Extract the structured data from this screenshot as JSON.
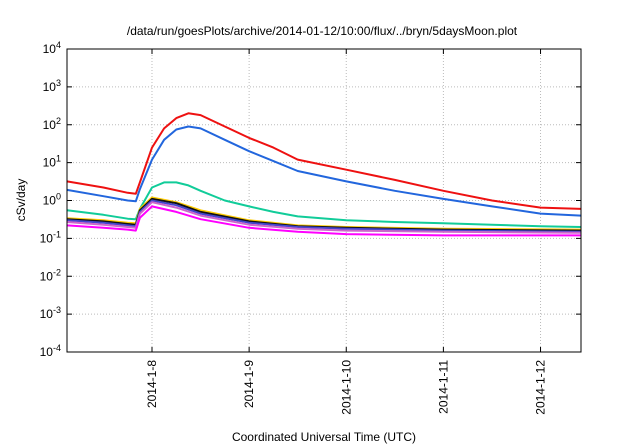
{
  "chart_data": {
    "type": "line",
    "title": "/data/run/goesPlots/archive/2014-01-12/10:00/flux/../bryn/5daysMoon.plot",
    "xlabel": "Coordinated Universal Time (UTC)",
    "ylabel": "cSv/day",
    "yscale": "log",
    "ylim": [
      0.0001,
      10000
    ],
    "yticks": [
      {
        "value": 0.0001,
        "base": "10",
        "exp": "-4"
      },
      {
        "value": 0.001,
        "base": "10",
        "exp": "-3"
      },
      {
        "value": 0.01,
        "base": "10",
        "exp": "-2"
      },
      {
        "value": 0.1,
        "base": "10",
        "exp": "-1"
      },
      {
        "value": 1,
        "base": "10",
        "exp": "0"
      },
      {
        "value": 10,
        "base": "10",
        "exp": "1"
      },
      {
        "value": 100,
        "base": "10",
        "exp": "2"
      },
      {
        "value": 1000,
        "base": "10",
        "exp": "3"
      },
      {
        "value": 10000,
        "base": "10",
        "exp": "4"
      }
    ],
    "xlim": [
      "2014-01-07T03:00",
      "2014-01-12T10:00"
    ],
    "xticks": [
      {
        "value": "2014-01-08T00:00",
        "label": "2014-1-8"
      },
      {
        "value": "2014-01-09T00:00",
        "label": "2014-1-9"
      },
      {
        "value": "2014-01-10T00:00",
        "label": "2014-1-10"
      },
      {
        "value": "2014-01-11T00:00",
        "label": "2014-1-11"
      },
      {
        "value": "2014-01-12T00:00",
        "label": "2014-1-12"
      }
    ],
    "grid": true,
    "series": [
      {
        "color": "#ee1111",
        "x": [
          "2014-01-07T03:00",
          "2014-01-07T12:00",
          "2014-01-07T18:00",
          "2014-01-07T20:00",
          "2014-01-07T21:00",
          "2014-01-08T00:00",
          "2014-01-08T03:00",
          "2014-01-08T06:00",
          "2014-01-08T09:00",
          "2014-01-08T12:00",
          "2014-01-08T18:00",
          "2014-01-09T00:00",
          "2014-01-09T06:00",
          "2014-01-09T12:00",
          "2014-01-10T00:00",
          "2014-01-10T12:00",
          "2014-01-11T00:00",
          "2014-01-11T12:00",
          "2014-01-12T00:00",
          "2014-01-12T10:00"
        ],
        "values": [
          3.2,
          2.2,
          1.6,
          1.5,
          3,
          25,
          80,
          150,
          200,
          180,
          90,
          45,
          25,
          12,
          6.5,
          3.5,
          1.8,
          1.0,
          0.65,
          0.6
        ]
      },
      {
        "color": "#2266dd",
        "x": [
          "2014-01-07T03:00",
          "2014-01-07T12:00",
          "2014-01-07T18:00",
          "2014-01-07T20:00",
          "2014-01-07T21:00",
          "2014-01-08T00:00",
          "2014-01-08T03:00",
          "2014-01-08T06:00",
          "2014-01-08T09:00",
          "2014-01-08T12:00",
          "2014-01-08T18:00",
          "2014-01-09T00:00",
          "2014-01-09T06:00",
          "2014-01-09T12:00",
          "2014-01-10T00:00",
          "2014-01-10T12:00",
          "2014-01-11T00:00",
          "2014-01-11T12:00",
          "2014-01-12T00:00",
          "2014-01-12T10:00"
        ],
        "values": [
          1.9,
          1.3,
          1.0,
          0.95,
          2,
          12,
          40,
          75,
          90,
          80,
          40,
          20,
          11,
          6,
          3.2,
          1.8,
          1.1,
          0.7,
          0.45,
          0.4
        ]
      },
      {
        "color": "#11cc99",
        "x": [
          "2014-01-07T03:00",
          "2014-01-07T12:00",
          "2014-01-07T18:00",
          "2014-01-07T20:00",
          "2014-01-07T21:00",
          "2014-01-08T00:00",
          "2014-01-08T03:00",
          "2014-01-08T06:00",
          "2014-01-08T09:00",
          "2014-01-08T12:00",
          "2014-01-08T18:00",
          "2014-01-09T00:00",
          "2014-01-09T06:00",
          "2014-01-09T12:00",
          "2014-01-10T00:00",
          "2014-01-10T12:00",
          "2014-01-11T00:00",
          "2014-01-11T12:00",
          "2014-01-12T00:00",
          "2014-01-12T10:00"
        ],
        "values": [
          0.55,
          0.42,
          0.33,
          0.32,
          0.6,
          2.2,
          3.0,
          3.0,
          2.5,
          1.8,
          1.0,
          0.7,
          0.5,
          0.38,
          0.3,
          0.27,
          0.25,
          0.23,
          0.21,
          0.2
        ]
      },
      {
        "color": "#ffcc00",
        "x": [
          "2014-01-07T03:00",
          "2014-01-07T12:00",
          "2014-01-07T18:00",
          "2014-01-07T20:00",
          "2014-01-07T21:00",
          "2014-01-08T00:00",
          "2014-01-08T06:00",
          "2014-01-08T12:00",
          "2014-01-09T00:00",
          "2014-01-09T12:00",
          "2014-01-10T00:00",
          "2014-01-11T00:00",
          "2014-01-12T10:00"
        ],
        "values": [
          0.34,
          0.3,
          0.26,
          0.25,
          0.6,
          1.2,
          0.9,
          0.55,
          0.3,
          0.22,
          0.2,
          0.18,
          0.17
        ]
      },
      {
        "color": "#111111",
        "x": [
          "2014-01-07T03:00",
          "2014-01-07T12:00",
          "2014-01-07T18:00",
          "2014-01-07T20:00",
          "2014-01-07T21:00",
          "2014-01-08T00:00",
          "2014-01-08T06:00",
          "2014-01-08T12:00",
          "2014-01-09T00:00",
          "2014-01-09T12:00",
          "2014-01-10T00:00",
          "2014-01-11T00:00",
          "2014-01-12T10:00"
        ],
        "values": [
          0.32,
          0.28,
          0.24,
          0.23,
          0.55,
          1.1,
          0.85,
          0.5,
          0.28,
          0.21,
          0.19,
          0.17,
          0.16
        ]
      },
      {
        "color": "#4444cc",
        "x": [
          "2014-01-07T03:00",
          "2014-01-07T12:00",
          "2014-01-07T18:00",
          "2014-01-07T20:00",
          "2014-01-07T21:00",
          "2014-01-08T00:00",
          "2014-01-08T06:00",
          "2014-01-08T12:00",
          "2014-01-09T00:00",
          "2014-01-09T12:00",
          "2014-01-10T00:00",
          "2014-01-11T00:00",
          "2014-01-12T10:00"
        ],
        "values": [
          0.3,
          0.26,
          0.22,
          0.21,
          0.5,
          1.0,
          0.75,
          0.45,
          0.26,
          0.2,
          0.18,
          0.16,
          0.15
        ]
      },
      {
        "color": "#cc66cc",
        "x": [
          "2014-01-07T03:00",
          "2014-01-07T12:00",
          "2014-01-07T18:00",
          "2014-01-07T20:00",
          "2014-01-07T21:00",
          "2014-01-08T00:00",
          "2014-01-08T06:00",
          "2014-01-08T12:00",
          "2014-01-09T00:00",
          "2014-01-09T12:00",
          "2014-01-10T00:00",
          "2014-01-11T00:00",
          "2014-01-12T10:00"
        ],
        "values": [
          0.27,
          0.23,
          0.2,
          0.19,
          0.45,
          0.9,
          0.65,
          0.4,
          0.23,
          0.18,
          0.16,
          0.15,
          0.14
        ]
      },
      {
        "color": "#ff00ff",
        "x": [
          "2014-01-07T03:00",
          "2014-01-07T12:00",
          "2014-01-07T18:00",
          "2014-01-07T20:00",
          "2014-01-07T21:00",
          "2014-01-08T00:00",
          "2014-01-08T06:00",
          "2014-01-08T12:00",
          "2014-01-09T00:00",
          "2014-01-09T12:00",
          "2014-01-10T00:00",
          "2014-01-11T00:00",
          "2014-01-12T10:00"
        ],
        "values": [
          0.22,
          0.19,
          0.17,
          0.16,
          0.35,
          0.7,
          0.5,
          0.32,
          0.19,
          0.15,
          0.13,
          0.12,
          0.12
        ]
      }
    ]
  }
}
